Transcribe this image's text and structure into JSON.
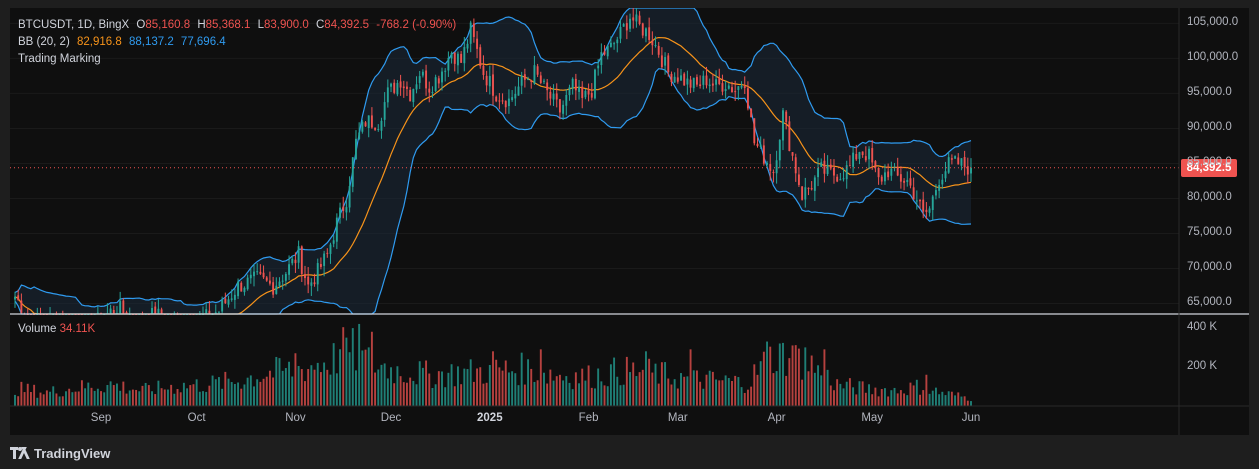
{
  "legend": {
    "symbol": "BTCUSDT, 1D, BingX",
    "ohlc": [
      {
        "key": "O",
        "value": "85,160.8"
      },
      {
        "key": "H",
        "value": "85,368.1"
      },
      {
        "key": "L",
        "value": "83,900.0"
      },
      {
        "key": "C",
        "value": "84,392.5"
      }
    ],
    "change": "-768.2 (-0.90%)",
    "bb_label": "BB (20, 2)",
    "bb_values": [
      "82,916.8",
      "88,137.2",
      "77,696.4"
    ],
    "indicator": "Trading Marking"
  },
  "volume_legend": {
    "label": "Volume",
    "value": "34.11K"
  },
  "current_price_label": "84,392.5",
  "branding": "TradingView",
  "colors": {
    "up": "#26a69a",
    "down": "#ef5350",
    "bb_band": "#2f9bf0",
    "bb_mid": "#f7931a",
    "bb_fill": "#1c2a3b"
  },
  "chart_data": {
    "type": "candlestick",
    "y_axis": {
      "ticks": [
        "105,000.0",
        "100,000.0",
        "95,000.0",
        "90,000.0",
        "85,000.0",
        "80,000.0",
        "75,000.0",
        "70,000.0",
        "65,000.0"
      ],
      "range": [
        63500,
        107200
      ]
    },
    "volume_axis": {
      "ticks": [
        "400 K",
        "200 K"
      ],
      "range": [
        0,
        430
      ]
    },
    "x_axis": {
      "ticks": [
        "Sep",
        "Oct",
        "Nov",
        "Dec",
        "2025",
        "Feb",
        "Mar",
        "Apr",
        "May",
        "Jun"
      ],
      "bold_ticks": [
        "2025"
      ]
    },
    "last_close": 84392.5,
    "anchors": [
      [
        0,
        66000
      ],
      [
        6,
        62000
      ],
      [
        12,
        63000
      ],
      [
        20,
        61500
      ],
      [
        26,
        62500
      ],
      [
        32,
        64500
      ],
      [
        38,
        62000
      ],
      [
        44,
        63500
      ],
      [
        52,
        61500
      ],
      [
        58,
        62500
      ],
      [
        64,
        64000
      ],
      [
        70,
        67500
      ],
      [
        76,
        68500
      ],
      [
        81,
        67500
      ],
      [
        85,
        69500
      ],
      [
        89,
        72000
      ],
      [
        92,
        67500
      ],
      [
        95,
        69500
      ],
      [
        98,
        72000
      ],
      [
        101,
        76500
      ],
      [
        104,
        80000
      ],
      [
        107,
        88000
      ],
      [
        110,
        91000
      ],
      [
        114,
        91000
      ],
      [
        117,
        95000
      ],
      [
        121,
        97000
      ],
      [
        124,
        95000
      ],
      [
        127,
        98000
      ],
      [
        130,
        96000
      ],
      [
        133,
        97500
      ],
      [
        137,
        101000
      ],
      [
        140,
        99500
      ],
      [
        143,
        104000
      ],
      [
        147,
        98000
      ],
      [
        151,
        95000
      ],
      [
        155,
        94000
      ],
      [
        159,
        96500
      ],
      [
        163,
        98000
      ],
      [
        167,
        95000
      ],
      [
        171,
        92500
      ],
      [
        175,
        96000
      ],
      [
        178,
        94000
      ],
      [
        181,
        95500
      ],
      [
        184,
        100500
      ],
      [
        187,
        101500
      ],
      [
        190,
        103500
      ],
      [
        193,
        106000
      ],
      [
        196,
        104500
      ],
      [
        199,
        103500
      ],
      [
        202,
        101000
      ],
      [
        205,
        98000
      ],
      [
        208,
        97500
      ],
      [
        211,
        96500
      ],
      [
        214,
        96000
      ],
      [
        217,
        97000
      ],
      [
        220,
        96000
      ],
      [
        223,
        96500
      ],
      [
        226,
        95500
      ],
      [
        229,
        97000
      ],
      [
        232,
        88000
      ],
      [
        235,
        86000
      ],
      [
        238,
        84000
      ],
      [
        241,
        92000
      ],
      [
        244,
        86000
      ],
      [
        247,
        80500
      ],
      [
        250,
        82000
      ],
      [
        253,
        84000
      ],
      [
        256,
        83500
      ],
      [
        259,
        83500
      ],
      [
        262,
        84500
      ],
      [
        265,
        87000
      ],
      [
        268,
        86000
      ],
      [
        271,
        82500
      ],
      [
        274,
        84000
      ],
      [
        277,
        83000
      ],
      [
        280,
        82500
      ],
      [
        283,
        80000
      ],
      [
        285,
        77500
      ],
      [
        287,
        78500
      ],
      [
        290,
        83000
      ],
      [
        293,
        84800
      ],
      [
        296,
        85000
      ],
      [
        298,
        84600
      ],
      [
        300,
        84392.5
      ]
    ],
    "volume_anchors": [
      [
        0,
        90
      ],
      [
        10,
        70
      ],
      [
        20,
        95
      ],
      [
        30,
        110
      ],
      [
        40,
        80
      ],
      [
        50,
        100
      ],
      [
        60,
        110
      ],
      [
        70,
        130
      ],
      [
        80,
        170
      ],
      [
        90,
        190
      ],
      [
        100,
        240
      ],
      [
        104,
        300
      ],
      [
        110,
        230
      ],
      [
        120,
        180
      ],
      [
        130,
        160
      ],
      [
        140,
        170
      ],
      [
        150,
        180
      ],
      [
        160,
        190
      ],
      [
        170,
        160
      ],
      [
        180,
        150
      ],
      [
        190,
        180
      ],
      [
        200,
        170
      ],
      [
        210,
        140
      ],
      [
        220,
        130
      ],
      [
        230,
        120
      ],
      [
        236,
        240
      ],
      [
        242,
        260
      ],
      [
        250,
        210
      ],
      [
        258,
        110
      ],
      [
        266,
        90
      ],
      [
        276,
        80
      ],
      [
        284,
        100
      ],
      [
        290,
        70
      ],
      [
        300,
        40
      ]
    ],
    "volume_spikes": [
      [
        88,
        270
      ],
      [
        104,
        350
      ],
      [
        108,
        420
      ],
      [
        112,
        380
      ],
      [
        150,
        280
      ],
      [
        165,
        290
      ],
      [
        198,
        280
      ],
      [
        212,
        290
      ],
      [
        236,
        330
      ],
      [
        240,
        320
      ],
      [
        244,
        310
      ],
      [
        248,
        300
      ],
      [
        254,
        290
      ],
      [
        286,
        160
      ]
    ]
  }
}
